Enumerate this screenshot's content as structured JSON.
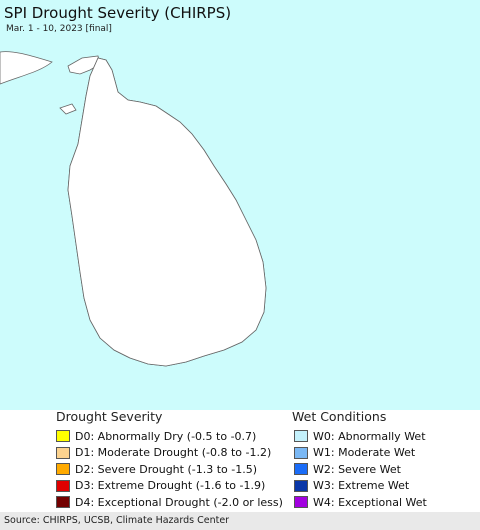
{
  "title": "SPI Drought Severity (CHIRPS)",
  "subtitle": "Mar. 1 - 10, 2023 [final]",
  "colors": {
    "water": "#cdfcfc",
    "land": "#ffffff",
    "border": "#666666"
  },
  "legend": {
    "drought": {
      "heading": "Drought Severity",
      "items": [
        {
          "label": "D0: Abnormally Dry (-0.5 to -0.7)",
          "color": "#ffff00"
        },
        {
          "label": "D1: Moderate Drought (-0.8 to -1.2)",
          "color": "#fcd38f"
        },
        {
          "label": "D2: Severe Drought (-1.3 to -1.5)",
          "color": "#ffaa00"
        },
        {
          "label": "D3: Extreme Drought (-1.6 to -1.9)",
          "color": "#e00000"
        },
        {
          "label": "D4: Exceptional Drought (-2.0 or less)",
          "color": "#730000"
        }
      ]
    },
    "wet": {
      "heading": "Wet Conditions",
      "items": [
        {
          "label": "W0: Abnormally Wet",
          "color": "#c4f1fc"
        },
        {
          "label": "W1: Moderate Wet",
          "color": "#7ab8f5"
        },
        {
          "label": "W2: Severe Wet",
          "color": "#1a6cf7"
        },
        {
          "label": "W3: Extreme Wet",
          "color": "#0a37a8"
        },
        {
          "label": "W4: Exceptional Wet",
          "color": "#a200e0"
        }
      ]
    }
  },
  "source": "Source: CHIRPS, UCSB, Climate Hazards Center"
}
